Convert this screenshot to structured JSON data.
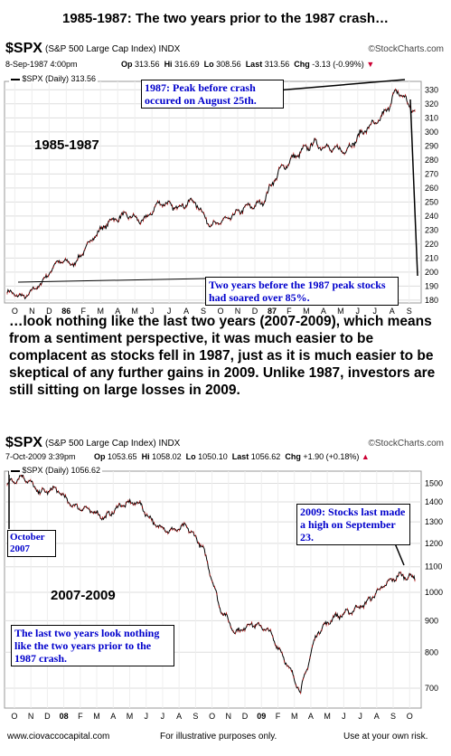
{
  "main_title": "1985-1987: The two years prior to the 1987 crash…",
  "middle_text": "…look nothing like the last two years (2007-2009), which means from a sentiment perspective, it was much easier to be complacent as stocks fell in 1987, just as it is much easier to be skeptical of any further gains in 2009.  Unlike 1987, investors are still sitting on large losses in 2009.",
  "footer": {
    "left": "www.ciovaccocapital.com",
    "middle": "For illustrative purposes only.",
    "right": "Use at your own risk."
  },
  "colors": {
    "price_line": "#000000",
    "callout_text": "#0000cc",
    "chg_arrow": "#cc0033"
  },
  "charts": [
    {
      "symbol": "$SPX",
      "index_name": "(S&P 500 Large Cap Index) INDX",
      "watermark": "©StockCharts.com",
      "date_line": "8-Sep-1987 4:00pm",
      "op_label": "Op",
      "op": "313.56",
      "hi_label": "Hi",
      "hi": "316.69",
      "lo_label": "Lo",
      "lo": "308.56",
      "last_label": "Last",
      "last": "313.56",
      "chg_label": "Chg",
      "chg": "-3.13 (-0.99%)",
      "legend": "$SPX (Daily) 313.56",
      "period_label": "1985-1987",
      "callouts": [
        "1987:  Peak before crash occured on August 25th.",
        "Two years before the 1987 peak stocks had soared over 85%."
      ]
    },
    {
      "symbol": "$SPX",
      "index_name": "(S&P 500 Large Cap Index) INDX",
      "watermark": "©StockCharts.com",
      "date_line": "7-Oct-2009 3:39pm",
      "op_label": "Op",
      "op": "1053.65",
      "hi_label": "Hi",
      "hi": "1058.02",
      "lo_label": "Lo",
      "lo": "1050.10",
      "last_label": "Last",
      "last": "1056.62",
      "chg_label": "Chg",
      "chg": "+1.90 (+0.18%)",
      "legend": "$SPX (Daily) 1056.62",
      "period_label": "2007-2009",
      "callouts": [
        "October 2007",
        "2009:  Stocks last made a high on September 23.",
        "The last two years look nothing like the two years prior to the 1987 crash."
      ]
    }
  ],
  "chart_data": [
    {
      "type": "line",
      "title": "$SPX (S&P 500 Large Cap Index) INDX",
      "series": [
        {
          "name": "$SPX (Daily)",
          "x": [
            "Sep 1985",
            "Oct 1985",
            "Nov 1985",
            "Dec 1985",
            "Jan 1986",
            "Feb 1986",
            "Mar 1986",
            "Apr 1986",
            "May 1986",
            "Jun 1986",
            "Jul 1986",
            "Aug 1986",
            "Sep 1986",
            "Oct 1986",
            "Nov 1986",
            "Dec 1986",
            "Jan 1987",
            "Feb 1987",
            "Mar 1987",
            "Apr 1987",
            "May 1987",
            "Jun 1987",
            "Jul 1987",
            "Aug 1987",
            "Sep 1987"
          ],
          "y": [
            186,
            182,
            192,
            208,
            206,
            224,
            236,
            241,
            236,
            250,
            246,
            251,
            233,
            238,
            246,
            249,
            272,
            283,
            292,
            288,
            287,
            301,
            309,
            330,
            313.56
          ]
        }
      ],
      "x_tick_labels": [
        "O",
        "N",
        "D",
        "86",
        "F",
        "M",
        "A",
        "M",
        "J",
        "J",
        "A",
        "S",
        "O",
        "N",
        "D",
        "87",
        "F",
        "M",
        "A",
        "M",
        "J",
        "J",
        "A",
        "S"
      ],
      "y_tick_labels": [
        180,
        190,
        200,
        210,
        220,
        230,
        240,
        250,
        260,
        270,
        280,
        290,
        300,
        310,
        320,
        330
      ],
      "ylim": [
        178,
        336
      ],
      "grid": true
    },
    {
      "type": "line",
      "title": "$SPX (S&P 500 Large Cap Index) INDX",
      "series": [
        {
          "name": "$SPX (Daily)",
          "x": [
            "Sep 2007",
            "Oct 2007",
            "Nov 2007",
            "Dec 2007",
            "Jan 2008",
            "Feb 2008",
            "Mar 2008",
            "Apr 2008",
            "May 2008",
            "Jun 2008",
            "Jul 2008",
            "Aug 2008",
            "Sep 2008",
            "Oct 2008",
            "Nov 2008",
            "Dec 2008",
            "Jan 2009",
            "Feb 2009",
            "Mar 2009",
            "Apr 2009",
            "May 2009",
            "Jun 2009",
            "Jul 2009",
            "Aug 2009",
            "Sep 2009",
            "Oct 2009"
          ],
          "y": [
            1500,
            1540,
            1450,
            1470,
            1380,
            1360,
            1320,
            1385,
            1400,
            1290,
            1255,
            1280,
            1180,
            950,
            860,
            890,
            870,
            780,
            690,
            860,
            910,
            930,
            960,
            1020,
            1065,
            1056.62
          ]
        }
      ],
      "x_tick_labels": [
        "O",
        "N",
        "D",
        "08",
        "F",
        "M",
        "A",
        "M",
        "J",
        "J",
        "A",
        "S",
        "O",
        "N",
        "D",
        "09",
        "F",
        "M",
        "A",
        "M",
        "J",
        "J",
        "A",
        "S",
        "O"
      ],
      "y_tick_labels": [
        700,
        800,
        900,
        1000,
        1100,
        1200,
        1300,
        1400,
        1500
      ],
      "ylim": [
        650,
        1570
      ],
      "log_scale": true,
      "grid": true
    }
  ]
}
